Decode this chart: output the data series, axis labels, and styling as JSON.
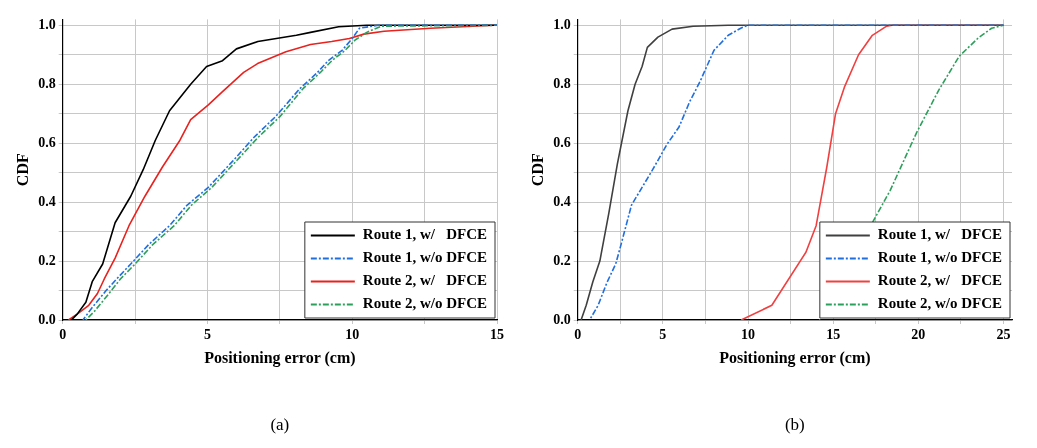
{
  "chart_data": [
    {
      "type": "line",
      "xlabel": "Positioning error (cm)",
      "ylabel": "CDF",
      "annotations": [
        "(a)"
      ],
      "xlim": [
        0,
        15
      ],
      "ylim": [
        0,
        1.02
      ],
      "xticks": [
        0,
        {
          "value": 2.5,
          "label": null
        },
        5,
        {
          "value": 7.5,
          "label": null
        },
        10,
        {
          "value": 12.5,
          "label": null
        },
        15
      ],
      "yticks": [
        {
          "value": 0,
          "label": "0.0"
        },
        {
          "value": 0.1,
          "label": null
        },
        {
          "value": 0.2,
          "label": "0.2"
        },
        {
          "value": 0.3,
          "label": null
        },
        {
          "value": 0.4,
          "label": "0.4"
        },
        {
          "value": 0.5,
          "label": null
        },
        {
          "value": 0.6,
          "label": "0.6"
        },
        {
          "value": 0.7,
          "label": null
        },
        {
          "value": 0.8,
          "label": "0.8"
        },
        {
          "value": 0.9,
          "label": null
        },
        {
          "value": 1,
          "label": "1.0"
        }
      ],
      "grid": true,
      "legend": "bottom right",
      "marker": "none",
      "series": [
        {
          "name": "Route 1, w/   DFCE",
          "color": "#000000",
          "line_style": "solid",
          "x": [
            0.3,
            0.5,
            0.8,
            1.02,
            1.38,
            1.81,
            2.35,
            2.78,
            3.2,
            3.69,
            4.42,
            4.97,
            5.52,
            6.0,
            6.74,
            8.07,
            8.56,
            9.53,
            10.5,
            15
          ],
          "values": [
            0,
            0.02,
            0.06,
            0.13,
            0.19,
            0.33,
            0.42,
            0.51,
            0.61,
            0.71,
            0.8,
            0.86,
            0.88,
            0.92,
            0.945,
            0.966,
            0.976,
            0.995,
            1,
            1
          ]
        },
        {
          "name": "Route 1, w/o DFCE",
          "color": "#1f6fe0",
          "line_style": "dashed",
          "x": [
            0.7,
            1.0,
            1.5,
            1.87,
            2.35,
            2.96,
            3.69,
            4.3,
            5.03,
            5.88,
            6.61,
            7.35,
            8.19,
            8.8,
            9.17,
            9.65,
            10.0,
            10.25,
            10.9,
            15
          ],
          "values": [
            0,
            0.04,
            0.1,
            0.14,
            0.19,
            0.255,
            0.32,
            0.39,
            0.45,
            0.54,
            0.62,
            0.69,
            0.785,
            0.84,
            0.88,
            0.915,
            0.955,
            0.99,
            1,
            1
          ]
        },
        {
          "name": "Route 2, w/   DFCE",
          "color": "#e8231f",
          "line_style": "solid",
          "x": [
            0.2,
            0.5,
            0.9,
            1.2,
            1.44,
            1.81,
            2.29,
            2.84,
            3.45,
            4.05,
            4.42,
            5.03,
            5.52,
            6.25,
            6.73,
            7.71,
            8.56,
            9.29,
            9.9,
            10.4,
            11.1,
            12.7,
            14.9,
            15
          ],
          "values": [
            0,
            0.02,
            0.05,
            0.09,
            0.14,
            0.21,
            0.32,
            0.42,
            0.52,
            0.61,
            0.68,
            0.73,
            0.775,
            0.84,
            0.87,
            0.91,
            0.935,
            0.945,
            0.955,
            0.97,
            0.98,
            0.99,
            1,
            1
          ]
        },
        {
          "name": "Route 2, w/o DFCE",
          "color": "#2ca05a",
          "line_style": "dashed",
          "x": [
            0.8,
            1.1,
            1.6,
            2.0,
            2.5,
            3.1,
            3.85,
            4.45,
            5.15,
            6.0,
            6.75,
            7.5,
            8.3,
            8.9,
            9.3,
            9.75,
            10.1,
            10.5,
            11.0,
            15
          ],
          "values": [
            0,
            0.03,
            0.09,
            0.14,
            0.19,
            0.255,
            0.32,
            0.39,
            0.45,
            0.54,
            0.62,
            0.69,
            0.785,
            0.84,
            0.88,
            0.915,
            0.95,
            0.976,
            0.997,
            1
          ]
        }
      ]
    },
    {
      "type": "line",
      "xlabel": "Positioning error (cm)",
      "ylabel": "CDF",
      "annotations": [
        "(b)"
      ],
      "xlim": [
        0,
        25.5
      ],
      "ylim": [
        0,
        1.02
      ],
      "xticks": [
        0,
        {
          "value": 2.5,
          "label": null
        },
        5,
        {
          "value": 7.5,
          "label": null
        },
        10,
        {
          "value": 12.5,
          "label": null
        },
        15,
        {
          "value": 17.5,
          "label": null
        },
        20,
        {
          "value": 22.5,
          "label": null
        },
        25
      ],
      "yticks": [
        {
          "value": 0,
          "label": "0.0"
        },
        {
          "value": 0.1,
          "label": null
        },
        {
          "value": 0.2,
          "label": "0.2"
        },
        {
          "value": 0.3,
          "label": null
        },
        {
          "value": 0.4,
          "label": "0.4"
        },
        {
          "value": 0.5,
          "label": null
        },
        {
          "value": 0.6,
          "label": "0.6"
        },
        {
          "value": 0.7,
          "label": null
        },
        {
          "value": 0.8,
          "label": "0.8"
        },
        {
          "value": 0.9,
          "label": null
        },
        {
          "value": 1,
          "label": "1.0"
        }
      ],
      "grid": true,
      "legend": "bottom right",
      "marker": "none",
      "series": [
        {
          "name": "Route 1, w/   DFCE",
          "color": "#404040",
          "line_style": "solid",
          "x": [
            0.2,
            0.5,
            0.89,
            1.3,
            1.82,
            2.33,
            2.95,
            3.37,
            3.78,
            4.09,
            4.71,
            5.54,
            6.78,
            8.84,
            25
          ],
          "values": [
            0,
            0.05,
            0.13,
            0.2,
            0.36,
            0.53,
            0.71,
            0.8,
            0.86,
            0.925,
            0.96,
            0.987,
            0.997,
            1,
            1
          ]
        },
        {
          "name": "Route 1, w/o DFCE",
          "color": "#1f6fe0",
          "line_style": "dashed",
          "x": [
            0.7,
            1.2,
            1.71,
            2.23,
            2.54,
            3.16,
            4.4,
            5.23,
            5.95,
            6.57,
            7.19,
            8.0,
            8.84,
            9.57,
            9.98,
            25
          ],
          "values": [
            0,
            0.05,
            0.126,
            0.19,
            0.255,
            0.39,
            0.51,
            0.595,
            0.655,
            0.74,
            0.81,
            0.915,
            0.966,
            0.99,
            1,
            1
          ]
        },
        {
          "name": "Route 2, w/   DFCE",
          "color": "#f04040",
          "line_style": "solid",
          "x": [
            9.6,
            11.4,
            13.4,
            14.0,
            14.63,
            15.14,
            15.66,
            16.49,
            17.3,
            18.14,
            18.45,
            25
          ],
          "values": [
            0,
            0.05,
            0.23,
            0.32,
            0.52,
            0.7,
            0.79,
            0.9,
            0.966,
            0.997,
            1,
            1
          ]
        },
        {
          "name": "Route 2, w/o DFCE",
          "color": "#2ca05a",
          "line_style": "dashed",
          "x": [
            14.2,
            17.3,
            18.35,
            19.9,
            21.2,
            22.4,
            23.5,
            24.3,
            25.0
          ],
          "values": [
            0,
            0.33,
            0.44,
            0.636,
            0.78,
            0.895,
            0.956,
            0.99,
            1
          ]
        }
      ]
    }
  ]
}
